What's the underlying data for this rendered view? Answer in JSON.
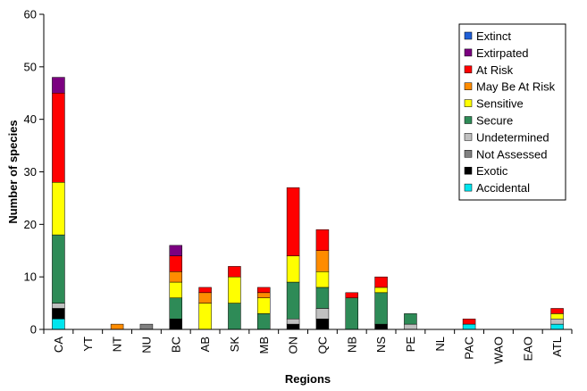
{
  "chart_data": {
    "type": "bar",
    "stacked": true,
    "xlabel": "Regions",
    "ylabel": "Number of species",
    "ylim": [
      0,
      60
    ],
    "yticks": [
      0,
      10,
      20,
      30,
      40,
      50,
      60
    ],
    "grid": false,
    "legend_position": "top-right",
    "categories": [
      "CA",
      "YT",
      "NT",
      "NU",
      "BC",
      "AB",
      "SK",
      "MB",
      "ON",
      "QC",
      "NB",
      "NS",
      "PE",
      "NL",
      "PAC",
      "WAO",
      "EAO",
      "ATL"
    ],
    "series": [
      {
        "name": "Accidental",
        "color": "#00e5ee",
        "values": [
          2,
          0,
          0,
          0,
          0,
          0,
          0,
          0,
          0,
          0,
          0,
          0,
          0,
          0,
          1,
          0,
          0,
          1
        ]
      },
      {
        "name": "Exotic",
        "color": "#000000",
        "values": [
          2,
          0,
          0,
          0,
          2,
          0,
          0,
          0,
          1,
          2,
          0,
          1,
          0,
          0,
          0,
          0,
          0,
          0
        ]
      },
      {
        "name": "Not Assessed",
        "color": "#808080",
        "values": [
          0,
          0,
          0,
          1,
          0,
          0,
          0,
          0,
          0,
          0,
          0,
          0,
          0,
          0,
          0,
          0,
          0,
          0
        ]
      },
      {
        "name": "Undetermined",
        "color": "#c0c0c0",
        "values": [
          1,
          0,
          0,
          0,
          0,
          0,
          0,
          0,
          1,
          2,
          0,
          0,
          1,
          0,
          0,
          0,
          0,
          1
        ]
      },
      {
        "name": "Secure",
        "color": "#2e8b57",
        "values": [
          13,
          0,
          0,
          0,
          4,
          0,
          5,
          3,
          7,
          4,
          6,
          6,
          2,
          0,
          0,
          0,
          0,
          0
        ]
      },
      {
        "name": "Sensitive",
        "color": "#ffff00",
        "values": [
          10,
          0,
          0,
          0,
          3,
          5,
          5,
          3,
          5,
          3,
          0,
          1,
          0,
          0,
          0,
          0,
          0,
          1
        ]
      },
      {
        "name": "May Be At Risk",
        "color": "#ff8c00",
        "values": [
          0,
          0,
          1,
          0,
          2,
          2,
          0,
          1,
          0,
          4,
          0,
          0,
          0,
          0,
          0,
          0,
          0,
          0
        ]
      },
      {
        "name": "At Risk",
        "color": "#ff0000",
        "values": [
          17,
          0,
          0,
          0,
          3,
          1,
          2,
          1,
          13,
          4,
          1,
          2,
          0,
          0,
          1,
          0,
          0,
          1
        ]
      },
      {
        "name": "Extirpated",
        "color": "#7b0080",
        "values": [
          3,
          0,
          0,
          0,
          2,
          0,
          0,
          0,
          0,
          0,
          0,
          0,
          0,
          0,
          0,
          0,
          0,
          0
        ]
      },
      {
        "name": "Extinct",
        "color": "#1f5fd6",
        "values": [
          0,
          0,
          0,
          0,
          0,
          0,
          0,
          0,
          0,
          0,
          0,
          0,
          0,
          0,
          0,
          0,
          0,
          0
        ]
      }
    ],
    "legend_order": [
      "Extinct",
      "Extirpated",
      "At Risk",
      "May Be At Risk",
      "Sensitive",
      "Secure",
      "Undetermined",
      "Not Assessed",
      "Exotic",
      "Accidental"
    ]
  }
}
